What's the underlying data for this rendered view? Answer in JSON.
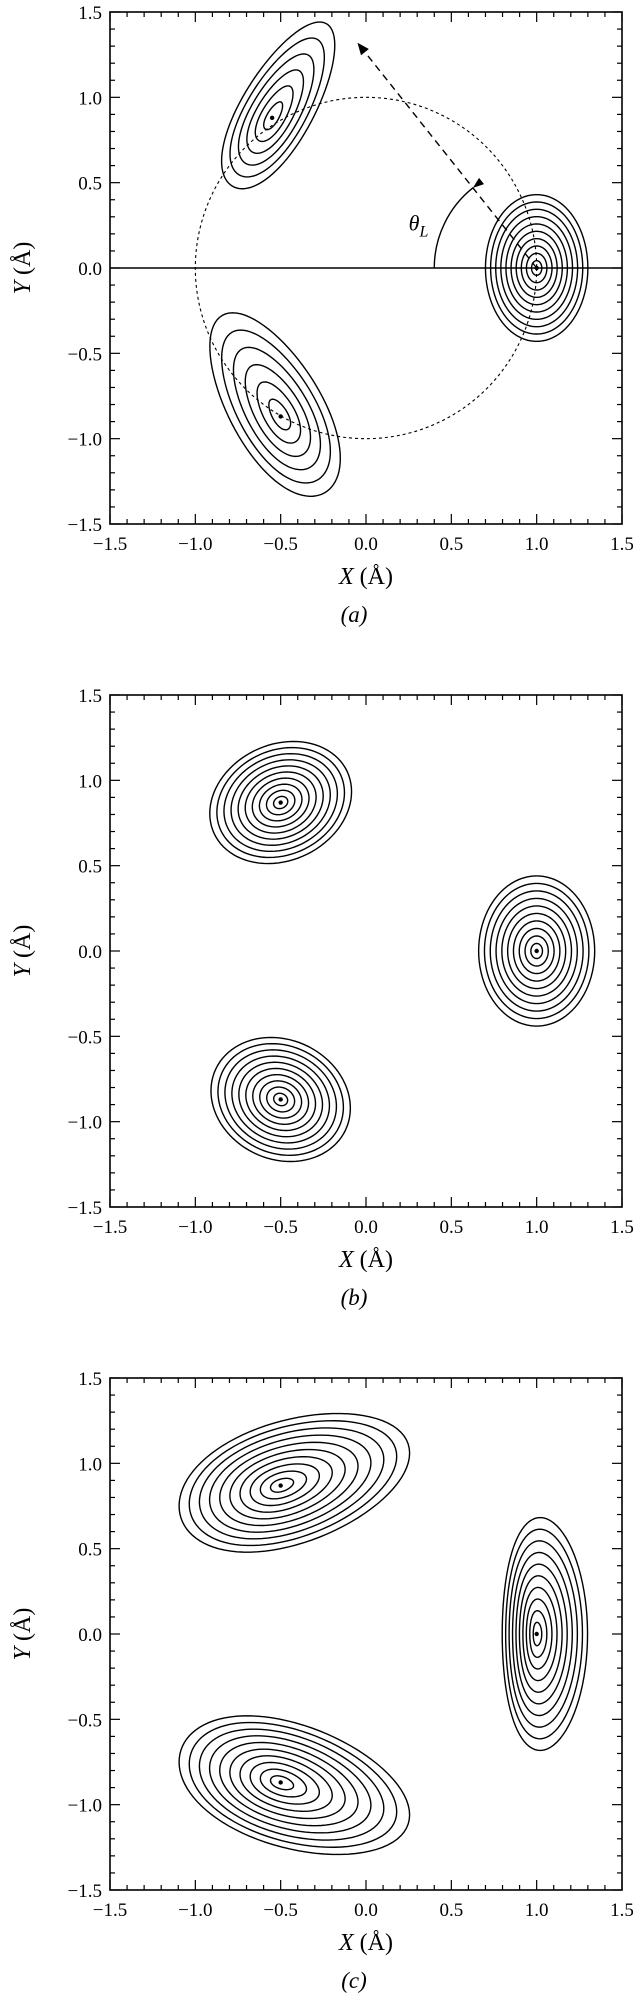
{
  "chart_data": [
    {
      "type": "contour",
      "panel": "a",
      "caption": "(a)",
      "xlabel": "X",
      "ylabel": "Y",
      "unit": "(Å)",
      "xlim": [
        -1.5,
        1.5
      ],
      "ylim": [
        -1.5,
        1.5
      ],
      "xticks": [
        "−1.5",
        "−1.0",
        "−0.5",
        "0.0",
        "0.5",
        "1.0",
        "1.5"
      ],
      "yticks": [
        "−1.5",
        "−1.0",
        "−0.5",
        "0.0",
        "0.5",
        "1.0",
        "1.5"
      ],
      "zero_line": true,
      "annotation": "θ",
      "annotation_sub": "L",
      "guide_circle_center": [
        0,
        0
      ],
      "guide_circle_radius": 1.0,
      "lobes": [
        {
          "center": [
            1.0,
            0.0
          ],
          "a": 0.3,
          "b": 0.43,
          "angle": 0,
          "skew": 0,
          "levels": 10
        },
        {
          "center": [
            -0.55,
            0.88
          ],
          "a": 0.55,
          "b": 0.21,
          "angle": 60,
          "skew": 0.45,
          "levels": 6
        },
        {
          "center": [
            -0.5,
            -0.87
          ],
          "a": 0.6,
          "b": 0.27,
          "angle": -60,
          "skew": -0.4,
          "levels": 6
        }
      ]
    },
    {
      "type": "contour",
      "panel": "b",
      "caption": "(b)",
      "xlabel": "X",
      "ylabel": "Y",
      "unit": "(Å)",
      "xlim": [
        -1.5,
        1.5
      ],
      "ylim": [
        -1.5,
        1.5
      ],
      "xticks": [
        "−1.5",
        "−1.0",
        "−0.5",
        "0.0",
        "0.5",
        "1.0",
        "1.5"
      ],
      "yticks": [
        "−1.5",
        "−1.0",
        "−0.5",
        "0.0",
        "0.5",
        "1.0",
        "1.5"
      ],
      "zero_line": false,
      "lobes": [
        {
          "center": [
            1.0,
            0.0
          ],
          "a": 0.34,
          "b": 0.44,
          "angle": 0,
          "skew": 0,
          "levels": 10
        },
        {
          "center": [
            -0.5,
            0.87
          ],
          "a": 0.43,
          "b": 0.34,
          "angle": 25,
          "skew": 0,
          "levels": 10
        },
        {
          "center": [
            -0.5,
            -0.87
          ],
          "a": 0.42,
          "b": 0.35,
          "angle": -25,
          "skew": 0,
          "levels": 10
        }
      ]
    },
    {
      "type": "contour",
      "panel": "c",
      "caption": "(c)",
      "xlabel": "X",
      "ylabel": "Y",
      "unit": "(Å)",
      "xlim": [
        -1.5,
        1.5
      ],
      "ylim": [
        -1.5,
        1.5
      ],
      "xticks": [
        "−1.5",
        "−1.0",
        "−0.5",
        "0.0",
        "0.5",
        "1.0",
        "1.5"
      ],
      "yticks": [
        "−1.5",
        "−1.0",
        "−0.5",
        "0.0",
        "0.5",
        "1.0",
        "1.5"
      ],
      "zero_line": false,
      "lobes": [
        {
          "center": [
            1.0,
            0.0
          ],
          "a": 0.25,
          "b": 0.68,
          "angle": 0,
          "skew": 0.55,
          "levels": 10
        },
        {
          "center": [
            -0.5,
            0.87
          ],
          "a": 0.7,
          "b": 0.36,
          "angle": 18,
          "skew": 0.35,
          "levels": 10
        },
        {
          "center": [
            -0.5,
            -0.87
          ],
          "a": 0.7,
          "b": 0.36,
          "angle": -18,
          "skew": 0.35,
          "levels": 10
        }
      ]
    }
  ]
}
